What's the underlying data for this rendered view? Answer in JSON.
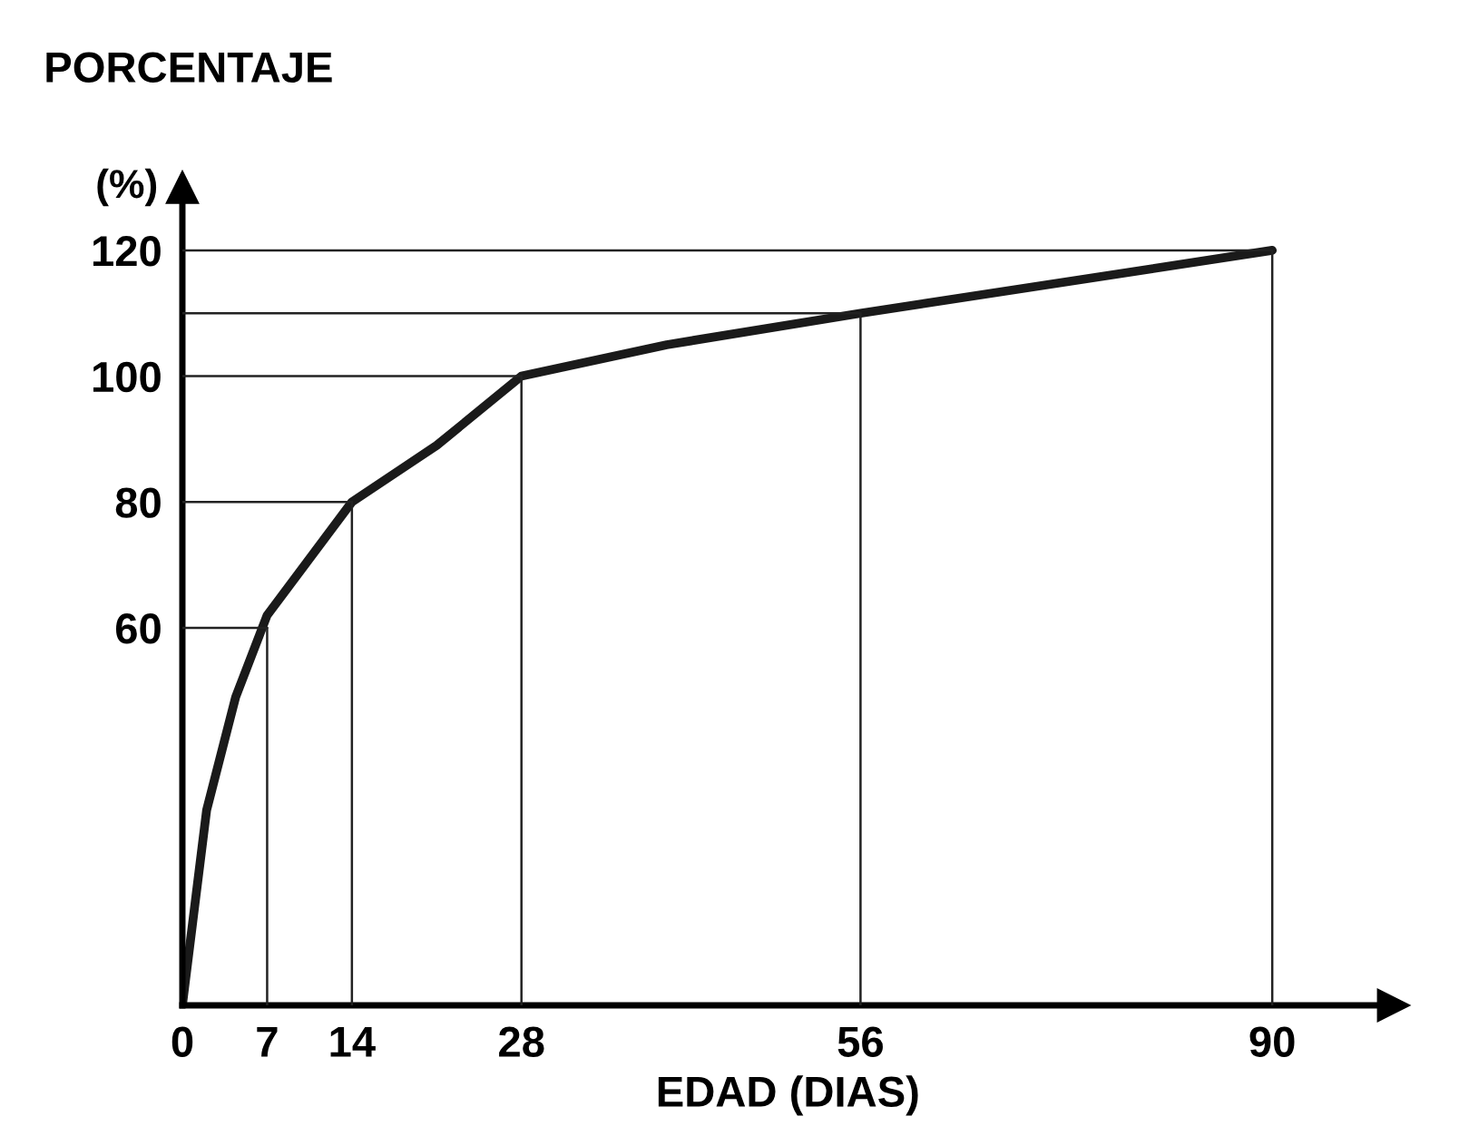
{
  "chart_data": {
    "type": "line",
    "title": "PORCENTAJE",
    "ylabel": "(%)",
    "xlabel": "EDAD (DIAS)",
    "x": [
      0,
      2,
      4.4,
      7,
      14,
      21,
      28,
      40,
      56,
      90
    ],
    "series": [
      {
        "color": "#1a1a1a",
        "values": [
          0,
          31,
          49,
          62,
          80,
          89,
          100,
          105,
          110,
          120
        ]
      },
      {
        "color": "#222222",
        "x": [
          0,
          7
        ],
        "values": [
          60,
          60
        ]
      },
      {
        "color": "#222222",
        "x": [
          0,
          14
        ],
        "values": [
          80,
          80
        ]
      },
      {
        "color": "#222222",
        "x": [
          0,
          28
        ],
        "values": [
          100,
          100
        ]
      },
      {
        "color": "#222222",
        "x": [
          0,
          56
        ],
        "values": [
          110,
          110
        ]
      },
      {
        "color": "#222222",
        "x": [
          0,
          90
        ],
        "values": [
          120,
          120
        ]
      },
      {
        "color": "#222222",
        "x": [
          7,
          7
        ],
        "values": [
          0,
          60
        ]
      },
      {
        "color": "#222222",
        "x": [
          14,
          14
        ],
        "values": [
          0,
          80
        ]
      },
      {
        "color": "#222222",
        "x": [
          28,
          28
        ],
        "values": [
          0,
          100
        ]
      },
      {
        "color": "#222222",
        "x": [
          56,
          56
        ],
        "values": [
          0,
          110
        ]
      },
      {
        "color": "#222222",
        "x": [
          90,
          90
        ],
        "values": [
          0,
          120
        ]
      }
    ],
    "xlim": [
      0,
      100
    ],
    "ylim": [
      0,
      130
    ],
    "xticks": [
      0,
      7,
      14,
      28,
      56,
      90
    ],
    "yticks": [
      60,
      80,
      100,
      120
    ],
    "grid": false,
    "marker": "none",
    "line_style": "solid"
  }
}
